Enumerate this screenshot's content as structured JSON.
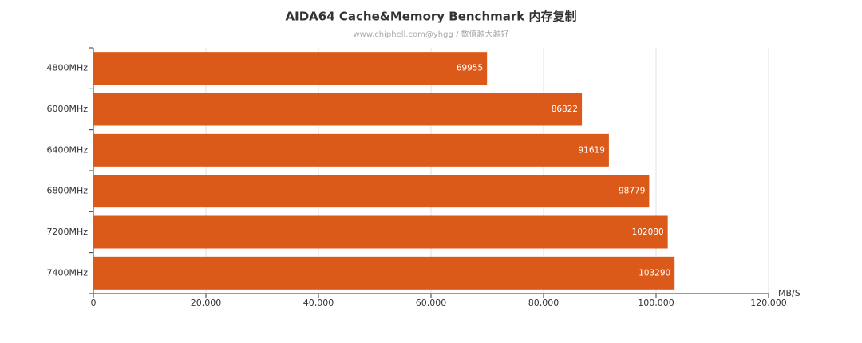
{
  "chart_data": {
    "type": "hbar",
    "title": "AIDA64 Cache&Memory Benchmark 内存复制",
    "subtitle": "www.chiphell.com@yhgg / 数值越大越好",
    "x_label": "MB/S",
    "categories": [
      "4800MHz",
      "6000MHz",
      "6400MHz",
      "6800MHz",
      "7200MHz",
      "7400MHz"
    ],
    "values": [
      69955,
      86822,
      91619,
      98779,
      102080,
      103290
    ],
    "color": "#dc5a19",
    "xlim": [
      0,
      120000
    ],
    "xticks": [
      0,
      {
        "value": 20000,
        "label": "20,000"
      },
      {
        "value": 40000,
        "label": "40,000"
      },
      {
        "value": 60000,
        "label": "60,000"
      },
      {
        "value": 80000,
        "label": "80,000"
      },
      {
        "value": 100000,
        "label": "100,000"
      },
      {
        "value": 120000,
        "label": "120,000"
      }
    ],
    "grid": true
  }
}
